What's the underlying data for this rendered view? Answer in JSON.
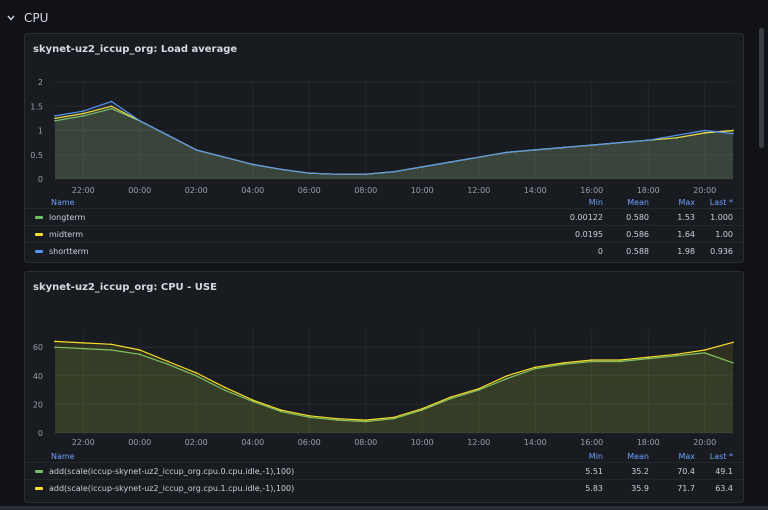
{
  "row": {
    "title": "CPU"
  },
  "panels": [
    {
      "title": "skynet-uz2_iccup_org: Load average",
      "legend": {
        "headers": {
          "name": "Name",
          "min": "Min",
          "mean": "Mean",
          "max": "Max",
          "last": "Last *"
        },
        "rows": [
          {
            "name": "longterm",
            "color": "#73bf69",
            "min": "0.00122",
            "mean": "0.580",
            "max": "1.53",
            "last": "1.000"
          },
          {
            "name": "midterm",
            "color": "#fade2a",
            "min": "0.0195",
            "mean": "0.586",
            "max": "1.64",
            "last": "1.00"
          },
          {
            "name": "shortterm",
            "color": "#5794f2",
            "min": "0",
            "mean": "0.588",
            "max": "1.98",
            "last": "0.936"
          }
        ]
      }
    },
    {
      "title": "skynet-uz2_iccup_org: CPU - USE",
      "legend": {
        "headers": {
          "name": "Name",
          "min": "Min",
          "mean": "Mean",
          "max": "Max",
          "last": "Last *"
        },
        "rows": [
          {
            "name": "add(scale(iccup-skynet-uz2_iccup_org.cpu.0.cpu.idle,-1),100)",
            "color": "#73bf69",
            "min": "5.51",
            "mean": "35.2",
            "max": "70.4",
            "last": "49.1"
          },
          {
            "name": "add(scale(iccup-skynet-uz2_iccup_org.cpu.1.cpu.idle,-1),100)",
            "color": "#fade2a",
            "min": "5.83",
            "mean": "35.9",
            "max": "71.7",
            "last": "63.4"
          }
        ]
      }
    }
  ],
  "chart_data": [
    {
      "type": "line",
      "title": "skynet-uz2_iccup_org: Load average",
      "x": [
        "21:00",
        "22:00",
        "23:00",
        "00:00",
        "01:00",
        "02:00",
        "03:00",
        "04:00",
        "05:00",
        "06:00",
        "07:00",
        "08:00",
        "09:00",
        "10:00",
        "11:00",
        "12:00",
        "13:00",
        "14:00",
        "15:00",
        "16:00",
        "17:00",
        "18:00",
        "19:00",
        "20:00",
        "20:45"
      ],
      "xticks": [
        "22:00",
        "00:00",
        "02:00",
        "04:00",
        "06:00",
        "08:00",
        "10:00",
        "12:00",
        "14:00",
        "16:00",
        "18:00",
        "20:00"
      ],
      "yticks": [
        "0",
        "0.5",
        "1",
        "1.5",
        "2"
      ],
      "ylim": [
        0,
        2
      ],
      "grid": true,
      "series": [
        {
          "name": "longterm",
          "color": "#73bf69",
          "values": [
            1.2,
            1.3,
            1.45,
            1.2,
            0.9,
            0.6,
            0.45,
            0.3,
            0.2,
            0.12,
            0.1,
            0.1,
            0.15,
            0.25,
            0.35,
            0.45,
            0.55,
            0.6,
            0.65,
            0.7,
            0.75,
            0.8,
            0.85,
            0.95,
            1.0
          ]
        },
        {
          "name": "midterm",
          "color": "#fade2a",
          "values": [
            1.25,
            1.35,
            1.5,
            1.2,
            0.9,
            0.6,
            0.45,
            0.3,
            0.2,
            0.12,
            0.1,
            0.1,
            0.15,
            0.25,
            0.35,
            0.45,
            0.55,
            0.6,
            0.65,
            0.7,
            0.75,
            0.8,
            0.85,
            0.95,
            1.0
          ]
        },
        {
          "name": "shortterm",
          "color": "#5794f2",
          "values": [
            1.3,
            1.4,
            1.6,
            1.2,
            0.9,
            0.6,
            0.45,
            0.3,
            0.2,
            0.12,
            0.1,
            0.1,
            0.15,
            0.25,
            0.35,
            0.45,
            0.55,
            0.6,
            0.65,
            0.7,
            0.75,
            0.8,
            0.9,
            1.0,
            0.936
          ]
        }
      ]
    },
    {
      "type": "line",
      "title": "skynet-uz2_iccup_org: CPU - USE",
      "x": [
        "21:00",
        "22:00",
        "23:00",
        "00:00",
        "01:00",
        "02:00",
        "03:00",
        "04:00",
        "05:00",
        "06:00",
        "07:00",
        "08:00",
        "09:00",
        "10:00",
        "11:00",
        "12:00",
        "13:00",
        "14:00",
        "15:00",
        "16:00",
        "17:00",
        "18:00",
        "19:00",
        "20:00",
        "20:45"
      ],
      "xticks": [
        "22:00",
        "00:00",
        "02:00",
        "04:00",
        "06:00",
        "08:00",
        "10:00",
        "12:00",
        "14:00",
        "16:00",
        "18:00",
        "20:00"
      ],
      "yticks": [
        "0",
        "20",
        "40",
        "60"
      ],
      "ylim": [
        0,
        72
      ],
      "grid": true,
      "series": [
        {
          "name": "add(scale(iccup-skynet-uz2_iccup_org.cpu.0.cpu.idle,-1),100)",
          "color": "#73bf69",
          "values": [
            60,
            59,
            58,
            55,
            48,
            40,
            30,
            22,
            15,
            11,
            9,
            8,
            10,
            16,
            24,
            30,
            38,
            45,
            48,
            50,
            50,
            52,
            54,
            56,
            49.1
          ]
        },
        {
          "name": "add(scale(iccup-skynet-uz2_iccup_org.cpu.1.cpu.idle,-1),100)",
          "color": "#fade2a",
          "values": [
            64,
            63,
            62,
            58,
            50,
            42,
            32,
            23,
            16,
            12,
            10,
            9,
            11,
            17,
            25,
            31,
            40,
            46,
            49,
            51,
            51,
            53,
            55,
            58,
            63.4
          ]
        }
      ]
    }
  ]
}
